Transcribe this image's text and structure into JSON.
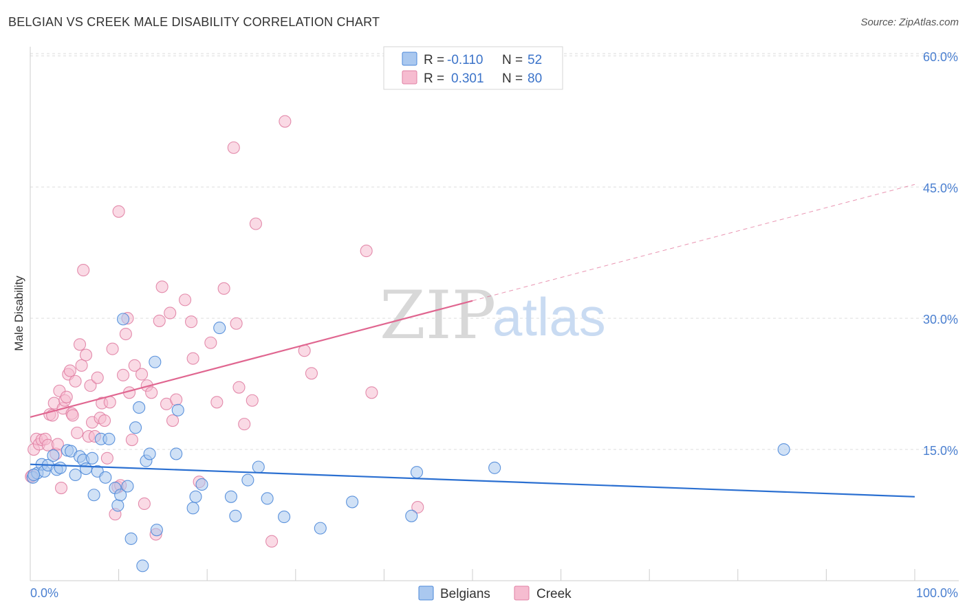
{
  "header": {
    "title": "BELGIAN VS CREEK MALE DISABILITY CORRELATION CHART",
    "source": "Source: ZipAtlas.com"
  },
  "watermark": {
    "zip": "ZIP",
    "atlas": "atlas"
  },
  "colors": {
    "belgians_fill": "#aac8ef",
    "belgians_stroke": "#4b87d8",
    "belgians_line": "#2a6fd1",
    "creek_fill": "#f6bcd0",
    "creek_stroke": "#e07fa3",
    "creek_line": "#e06690",
    "grid": "#dddddd",
    "axis_text": "#4a7fd0"
  },
  "legend": {
    "r_label": "R =",
    "n_label": "N =",
    "rows": [
      {
        "series": "Belgians",
        "r": "-0.110",
        "n": "52"
      },
      {
        "series": "Creek",
        "r": "0.301",
        "n": "80"
      }
    ]
  },
  "chart_data": {
    "type": "scatter",
    "title": "BELGIAN VS CREEK MALE DISABILITY CORRELATION CHART",
    "xlabel": "",
    "ylabel": "Male Disability",
    "xlim": [
      0,
      100
    ],
    "ylim": [
      0,
      62
    ],
    "x_tick_labels": [
      "0.0%",
      "100.0%"
    ],
    "y_ticks": [
      15,
      30,
      45,
      60
    ],
    "y_tick_labels": [
      "15.0%",
      "30.0%",
      "45.0%",
      "60.0%"
    ],
    "grid": true,
    "legend_position": "top-center",
    "series": [
      {
        "name": "Belgians",
        "r": -0.11,
        "n": 52,
        "trend": {
          "x0": 0,
          "y0": 13.3,
          "x1": 100,
          "y1": 9.6
        },
        "points": [
          [
            0.3,
            11.8
          ],
          [
            0.8,
            12.3
          ],
          [
            1.3,
            13.3
          ],
          [
            1.6,
            12.5
          ],
          [
            2.0,
            13.2
          ],
          [
            2.6,
            14.3
          ],
          [
            3.0,
            12.7
          ],
          [
            3.4,
            12.9
          ],
          [
            4.2,
            14.9
          ],
          [
            4.6,
            14.8
          ],
          [
            5.1,
            12.1
          ],
          [
            5.6,
            14.2
          ],
          [
            6.0,
            13.8
          ],
          [
            6.3,
            12.8
          ],
          [
            7.0,
            14.0
          ],
          [
            7.2,
            9.8
          ],
          [
            7.6,
            12.5
          ],
          [
            8.0,
            16.2
          ],
          [
            8.5,
            11.8
          ],
          [
            8.9,
            16.2
          ],
          [
            9.6,
            10.6
          ],
          [
            9.9,
            8.6
          ],
          [
            10.2,
            9.8
          ],
          [
            10.5,
            29.9
          ],
          [
            11.0,
            10.8
          ],
          [
            11.4,
            4.8
          ],
          [
            11.9,
            17.5
          ],
          [
            12.3,
            19.8
          ],
          [
            12.7,
            1.7
          ],
          [
            13.1,
            13.7
          ],
          [
            13.5,
            14.5
          ],
          [
            14.1,
            25.0
          ],
          [
            14.3,
            5.8
          ],
          [
            16.5,
            14.5
          ],
          [
            16.7,
            19.5
          ],
          [
            18.4,
            8.3
          ],
          [
            18.7,
            9.6
          ],
          [
            19.4,
            11.0
          ],
          [
            21.4,
            28.9
          ],
          [
            22.7,
            9.6
          ],
          [
            23.2,
            7.4
          ],
          [
            24.6,
            11.5
          ],
          [
            25.8,
            13.0
          ],
          [
            26.8,
            9.4
          ],
          [
            28.7,
            7.3
          ],
          [
            32.8,
            6.0
          ],
          [
            36.4,
            9.0
          ],
          [
            43.1,
            7.4
          ],
          [
            43.7,
            12.4
          ],
          [
            52.5,
            12.9
          ],
          [
            85.2,
            15.0
          ],
          [
            0.4,
            12.1
          ]
        ]
      },
      {
        "name": "Creek",
        "r": 0.301,
        "n": 80,
        "trend": {
          "x0": 0,
          "y0": 18.7,
          "x1": 50,
          "y1": 32.0,
          "dashed_to_x": 100,
          "dashed_to_y": 45.3
        },
        "points": [
          [
            0.2,
            12.0
          ],
          [
            0.4,
            15.0
          ],
          [
            0.7,
            16.2
          ],
          [
            1.0,
            15.6
          ],
          [
            1.3,
            16.1
          ],
          [
            1.7,
            16.2
          ],
          [
            2.0,
            15.5
          ],
          [
            2.2,
            19.0
          ],
          [
            2.5,
            18.9
          ],
          [
            2.7,
            20.3
          ],
          [
            2.9,
            14.5
          ],
          [
            3.1,
            15.6
          ],
          [
            3.3,
            21.7
          ],
          [
            3.5,
            10.6
          ],
          [
            3.7,
            19.7
          ],
          [
            3.9,
            20.6
          ],
          [
            4.1,
            21.0
          ],
          [
            4.3,
            23.6
          ],
          [
            4.5,
            24.0
          ],
          [
            4.7,
            19.1
          ],
          [
            4.8,
            18.9
          ],
          [
            5.1,
            22.8
          ],
          [
            5.3,
            16.9
          ],
          [
            5.6,
            27.0
          ],
          [
            5.8,
            24.6
          ],
          [
            6.0,
            35.5
          ],
          [
            6.3,
            25.8
          ],
          [
            6.6,
            16.5
          ],
          [
            6.8,
            22.3
          ],
          [
            7.0,
            18.1
          ],
          [
            7.3,
            16.5
          ],
          [
            7.6,
            23.2
          ],
          [
            7.9,
            18.6
          ],
          [
            8.1,
            20.3
          ],
          [
            8.4,
            18.3
          ],
          [
            8.7,
            14.0
          ],
          [
            9.0,
            20.4
          ],
          [
            9.3,
            26.5
          ],
          [
            9.6,
            7.6
          ],
          [
            9.9,
            10.7
          ],
          [
            10.2,
            10.9
          ],
          [
            10.0,
            42.2
          ],
          [
            10.5,
            23.5
          ],
          [
            10.8,
            28.2
          ],
          [
            11.0,
            30.0
          ],
          [
            11.2,
            21.5
          ],
          [
            11.5,
            16.1
          ],
          [
            11.8,
            24.6
          ],
          [
            12.6,
            23.6
          ],
          [
            12.9,
            8.8
          ],
          [
            13.2,
            22.3
          ],
          [
            13.7,
            21.5
          ],
          [
            14.2,
            5.3
          ],
          [
            14.6,
            29.7
          ],
          [
            14.9,
            33.6
          ],
          [
            15.4,
            20.2
          ],
          [
            15.8,
            30.6
          ],
          [
            16.1,
            18.3
          ],
          [
            16.5,
            20.7
          ],
          [
            17.5,
            32.1
          ],
          [
            18.2,
            29.6
          ],
          [
            18.4,
            25.4
          ],
          [
            19.1,
            11.3
          ],
          [
            20.4,
            27.2
          ],
          [
            21.1,
            20.4
          ],
          [
            21.9,
            33.4
          ],
          [
            23.0,
            49.5
          ],
          [
            23.3,
            29.4
          ],
          [
            23.6,
            22.1
          ],
          [
            24.2,
            17.9
          ],
          [
            25.1,
            20.6
          ],
          [
            25.5,
            40.8
          ],
          [
            27.3,
            4.5
          ],
          [
            28.8,
            52.5
          ],
          [
            31.0,
            26.3
          ],
          [
            31.8,
            23.7
          ],
          [
            38.0,
            37.7
          ],
          [
            38.6,
            21.5
          ],
          [
            43.8,
            8.4
          ],
          [
            0.1,
            11.9
          ]
        ]
      }
    ]
  }
}
